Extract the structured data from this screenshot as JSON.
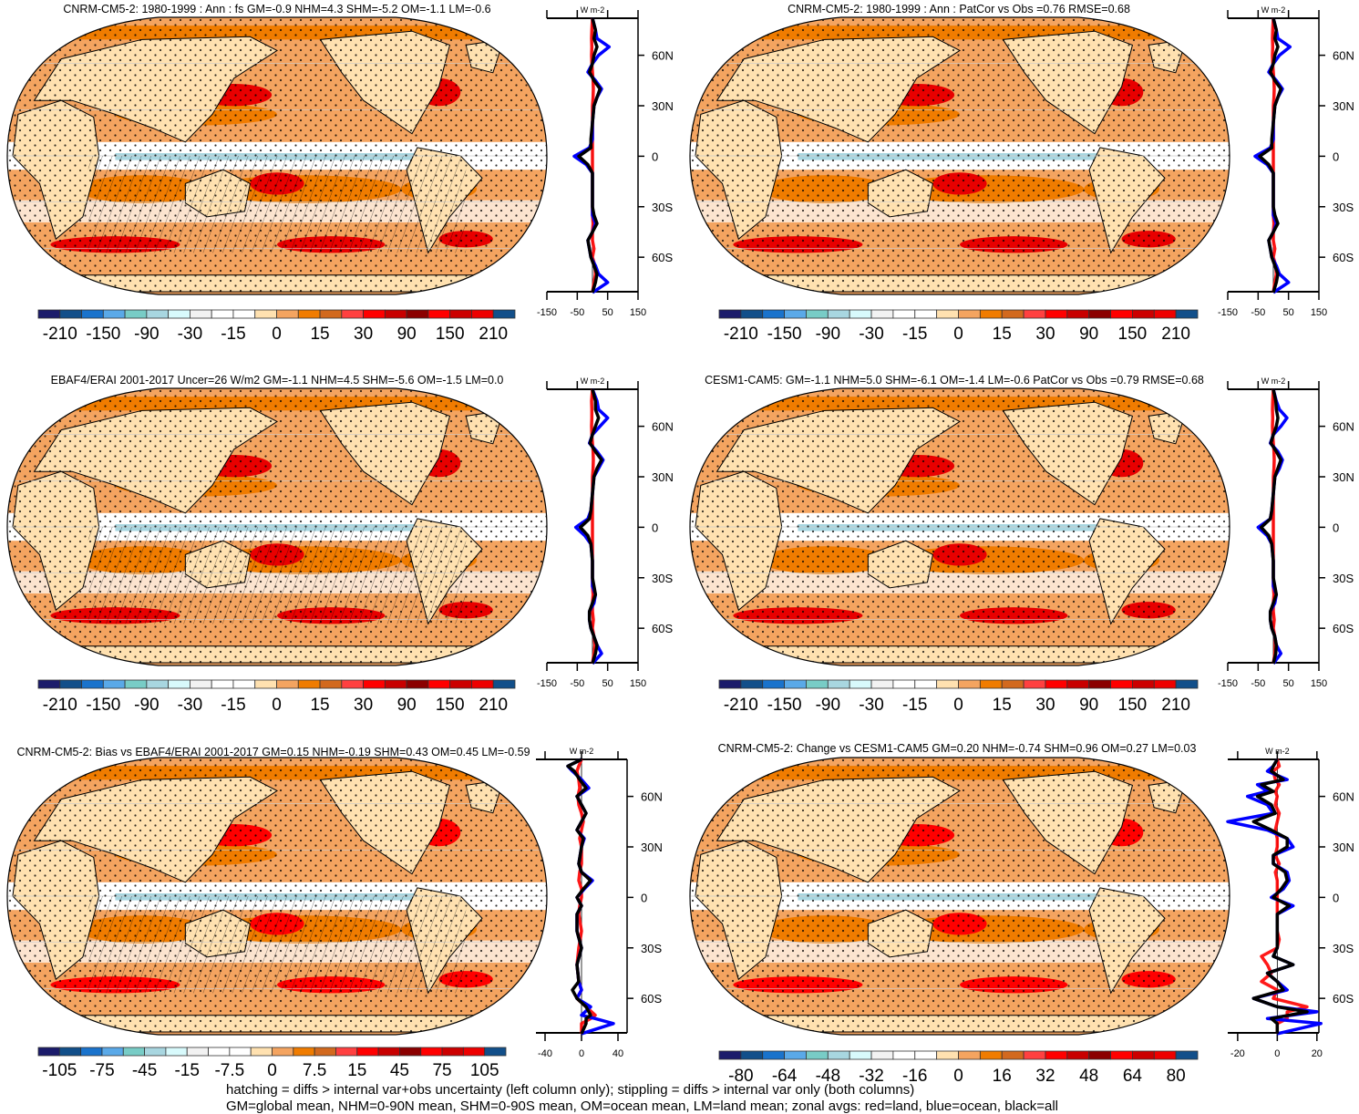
{
  "chart_data": [
    {
      "type": "map",
      "title": "CNRM-CM5-2: 1980-1999 : Ann : fs GM=-0.9 NHM=4.3 SHM=-5.2 OM=-1.1 LM=-0.6",
      "colorbar": {
        "labels": [
          "-210",
          "-150",
          "-90",
          "-30",
          "-15",
          "0",
          "15",
          "30",
          "90",
          "150",
          "210"
        ]
      },
      "zonal": {
        "unit": "W m-2",
        "xticks": [
          "-150",
          "-50",
          "50",
          "150"
        ],
        "xlim": [
          -150,
          150
        ],
        "lat_labels": [
          "60N",
          "30N",
          "0",
          "30S",
          "60S"
        ],
        "lat": [
          82,
          75,
          70,
          65,
          60,
          55,
          50,
          45,
          40,
          35,
          30,
          20,
          10,
          5,
          0,
          -5,
          -10,
          -20,
          -30,
          -35,
          -40,
          -45,
          -50,
          -55,
          -60,
          -65,
          -70,
          -75,
          -81
        ],
        "series": {
          "land": [
            0,
            -2,
            -3,
            -2,
            -3,
            -2,
            0,
            2,
            3,
            2,
            0,
            0,
            0,
            0,
            0,
            0,
            0,
            0,
            0,
            0,
            2,
            0,
            0,
            5,
            0,
            8,
            10,
            5,
            0
          ],
          "ocean": [
            0,
            10,
            15,
            55,
            20,
            0,
            -15,
            10,
            30,
            15,
            5,
            0,
            0,
            -10,
            -60,
            -20,
            0,
            0,
            0,
            0,
            10,
            0,
            -15,
            -10,
            -5,
            10,
            20,
            50,
            0
          ],
          "all": [
            0,
            10,
            5,
            15,
            5,
            0,
            -10,
            5,
            25,
            15,
            5,
            0,
            -5,
            -5,
            -45,
            -15,
            0,
            0,
            0,
            5,
            15,
            0,
            -15,
            -10,
            -5,
            5,
            15,
            10,
            0
          ]
        }
      }
    },
    {
      "type": "map",
      "title": "CNRM-CM5-2: 1980-1999 : Ann : PatCor vs Obs =0.76 RMSE=0.68",
      "colorbar": {
        "labels": [
          "-210",
          "-150",
          "-90",
          "-30",
          "-15",
          "0",
          "15",
          "30",
          "90",
          "150",
          "210"
        ]
      },
      "zonal": {
        "unit": "W m-2",
        "xticks": [
          "-150",
          "-50",
          "50",
          "150"
        ],
        "xlim": [
          -150,
          150
        ],
        "lat_labels": [
          "60N",
          "30N",
          "0",
          "30S",
          "60S"
        ],
        "lat": [
          82,
          75,
          70,
          65,
          60,
          55,
          50,
          45,
          40,
          35,
          30,
          20,
          10,
          5,
          0,
          -5,
          -10,
          -20,
          -30,
          -35,
          -40,
          -45,
          -50,
          -55,
          -60,
          -65,
          -70,
          -75,
          -81
        ],
        "series": {
          "land": [
            0,
            -2,
            -3,
            -2,
            -3,
            -2,
            0,
            2,
            3,
            2,
            0,
            0,
            0,
            0,
            0,
            0,
            0,
            0,
            0,
            0,
            2,
            0,
            0,
            5,
            0,
            8,
            10,
            5,
            0
          ],
          "ocean": [
            0,
            10,
            15,
            55,
            20,
            0,
            -15,
            10,
            30,
            15,
            5,
            0,
            0,
            -10,
            -60,
            -20,
            0,
            0,
            0,
            0,
            10,
            0,
            -15,
            -10,
            -5,
            10,
            20,
            50,
            0
          ],
          "all": [
            0,
            10,
            5,
            15,
            5,
            0,
            -10,
            5,
            25,
            15,
            5,
            0,
            -5,
            -5,
            -45,
            -15,
            0,
            0,
            0,
            5,
            15,
            0,
            -15,
            -10,
            -5,
            5,
            15,
            10,
            0
          ]
        }
      }
    },
    {
      "type": "map",
      "title": "EBAF4/ERAI 2001-2017 Uncer=26 W/m2 GM=-1.1 NHM=4.5 SHM=-5.6 OM=-1.5 LM=0.0",
      "colorbar": {
        "labels": [
          "-210",
          "-150",
          "-90",
          "-30",
          "-15",
          "0",
          "15",
          "30",
          "90",
          "150",
          "210"
        ]
      },
      "zonal": {
        "unit": "W m-2",
        "xticks": [
          "-150",
          "-50",
          "50",
          "150"
        ],
        "xlim": [
          -150,
          150
        ],
        "lat_labels": [
          "60N",
          "30N",
          "0",
          "30S",
          "60S"
        ],
        "lat": [
          82,
          75,
          70,
          65,
          60,
          55,
          50,
          45,
          40,
          35,
          30,
          20,
          10,
          5,
          0,
          -5,
          -10,
          -20,
          -30,
          -35,
          -40,
          -45,
          -50,
          -55,
          -60,
          -65,
          -70,
          -75,
          -81
        ],
        "series": {
          "land": [
            0,
            -3,
            -2,
            -2,
            -3,
            -2,
            0,
            2,
            3,
            2,
            0,
            0,
            0,
            0,
            0,
            0,
            0,
            0,
            0,
            0,
            2,
            0,
            0,
            3,
            0,
            5,
            8,
            5,
            0
          ],
          "ocean": [
            0,
            15,
            20,
            50,
            25,
            0,
            -10,
            15,
            35,
            20,
            5,
            0,
            -5,
            -15,
            -55,
            -25,
            -5,
            0,
            0,
            0,
            10,
            5,
            -10,
            -10,
            -5,
            5,
            15,
            30,
            0
          ],
          "all": [
            0,
            10,
            10,
            20,
            10,
            0,
            -8,
            10,
            30,
            15,
            5,
            0,
            -5,
            -10,
            -40,
            -15,
            -5,
            0,
            0,
            5,
            10,
            0,
            -10,
            -10,
            -5,
            5,
            15,
            10,
            0
          ]
        }
      }
    },
    {
      "type": "map",
      "title": "CESM1-CAM5: GM=-1.1 NHM=5.0 SHM=-6.1 OM=-1.4 LM=-0.6 PatCor vs Obs =0.79 RMSE=0.68",
      "colorbar": {
        "labels": [
          "-210",
          "-150",
          "-90",
          "-30",
          "-15",
          "0",
          "15",
          "30",
          "90",
          "150",
          "210"
        ]
      },
      "zonal": {
        "unit": "W m-2",
        "xticks": [
          "-150",
          "-50",
          "50",
          "150"
        ],
        "xlim": [
          -150,
          150
        ],
        "lat_labels": [
          "60N",
          "30N",
          "0",
          "30S",
          "60S"
        ],
        "lat": [
          82,
          75,
          70,
          65,
          60,
          55,
          50,
          45,
          40,
          35,
          30,
          20,
          10,
          5,
          0,
          -5,
          -10,
          -20,
          -30,
          -35,
          -40,
          -45,
          -50,
          -55,
          -60,
          -65,
          -70,
          -75,
          -81
        ],
        "series": {
          "land": [
            0,
            -2,
            -3,
            -2,
            -3,
            -2,
            0,
            2,
            3,
            2,
            0,
            0,
            0,
            0,
            0,
            0,
            0,
            0,
            0,
            0,
            2,
            0,
            0,
            3,
            0,
            5,
            6,
            5,
            0
          ],
          "ocean": [
            0,
            10,
            20,
            45,
            25,
            0,
            -10,
            15,
            30,
            20,
            5,
            0,
            -5,
            -10,
            -50,
            -20,
            -5,
            0,
            0,
            0,
            10,
            5,
            -10,
            -10,
            -5,
            5,
            10,
            25,
            0
          ],
          "all": [
            0,
            8,
            10,
            15,
            10,
            0,
            -8,
            10,
            25,
            15,
            5,
            0,
            -5,
            -10,
            -40,
            -15,
            -5,
            0,
            0,
            5,
            10,
            0,
            -10,
            -10,
            -5,
            5,
            10,
            8,
            0
          ]
        }
      }
    },
    {
      "type": "map",
      "title": "CNRM-CM5-2: Bias vs EBAF4/ERAI 2001-2017 GM=0.15 NHM=-0.19 SHM=0.43 OM=0.45 LM=-0.59",
      "colorbar": {
        "labels": [
          "-105",
          "-75",
          "-45",
          "-15",
          "-7.5",
          "0",
          "7.5",
          "15",
          "45",
          "75",
          "105"
        ]
      },
      "zonal": {
        "unit": "W m-2",
        "xticks": [
          "-40",
          "0",
          "40"
        ],
        "xlim": [
          -50,
          50
        ],
        "lat_labels": [
          "60N",
          "30N",
          "0",
          "30S",
          "60S"
        ],
        "lat": [
          82,
          78,
          75,
          70,
          65,
          60,
          55,
          50,
          45,
          40,
          35,
          30,
          20,
          15,
          10,
          5,
          0,
          -5,
          -10,
          -20,
          -30,
          -40,
          -50,
          -55,
          -60,
          -65,
          -70,
          -72,
          -75,
          -81
        ],
        "series": {
          "land": [
            0,
            -3,
            -5,
            -3,
            -2,
            -4,
            -3,
            0,
            2,
            0,
            -2,
            0,
            0,
            -2,
            -3,
            0,
            0,
            -2,
            -3,
            0,
            -3,
            -5,
            -3,
            0,
            -5,
            5,
            15,
            10,
            0,
            0
          ],
          "ocean": [
            0,
            -15,
            -10,
            0,
            8,
            -5,
            0,
            5,
            0,
            -5,
            3,
            0,
            -3,
            0,
            12,
            3,
            -5,
            0,
            -5,
            -5,
            0,
            -5,
            -3,
            0,
            -5,
            10,
            0,
            15,
            35,
            0
          ],
          "all": [
            0,
            -15,
            -8,
            -2,
            5,
            -5,
            0,
            5,
            0,
            -5,
            2,
            0,
            -3,
            0,
            10,
            2,
            -5,
            0,
            -5,
            -5,
            0,
            -5,
            -3,
            -10,
            -5,
            5,
            10,
            5,
            5,
            0
          ]
        }
      }
    },
    {
      "type": "map",
      "title": "CNRM-CM5-2: Change vs CESM1-CAM5 GM=0.20 NHM=-0.74 SHM=0.96 OM=0.27 LM=0.03",
      "colorbar": {
        "labels": [
          "-80",
          "-64",
          "-48",
          "-32",
          "-16",
          "0",
          "16",
          "32",
          "48",
          "64",
          "80"
        ]
      },
      "zonal": {
        "unit": "W m-2",
        "xticks": [
          "-20",
          "0",
          "20"
        ],
        "xlim": [
          -25,
          21
        ],
        "lat_labels": [
          "60N",
          "30N",
          "0",
          "30S",
          "60S"
        ],
        "lat": [
          82,
          78,
          75,
          70,
          67,
          63,
          60,
          55,
          50,
          45,
          40,
          35,
          30,
          25,
          20,
          15,
          10,
          5,
          0,
          -5,
          -10,
          -15,
          -20,
          -25,
          -30,
          -35,
          -40,
          -45,
          -50,
          -55,
          -60,
          -65,
          -68,
          -72,
          -75,
          -81
        ],
        "series": {
          "land": [
            0,
            1,
            -2,
            -1,
            1,
            -1,
            0,
            -1,
            1,
            0,
            -1,
            0,
            0,
            -1,
            1,
            -1,
            0,
            0,
            0,
            0,
            0,
            0,
            0,
            1,
            0,
            -8,
            -5,
            -3,
            -8,
            0,
            -2,
            15,
            5,
            5,
            0,
            0
          ],
          "ocean": [
            0,
            -2,
            -5,
            5,
            -10,
            -5,
            -15,
            -5,
            -2,
            -25,
            -5,
            5,
            8,
            -2,
            -2,
            5,
            6,
            3,
            -3,
            8,
            0,
            0,
            0,
            0,
            0,
            -2,
            8,
            -5,
            0,
            5,
            -12,
            0,
            20,
            -5,
            22,
            0
          ],
          "all": [
            0,
            -2,
            -3,
            3,
            -8,
            -2,
            -10,
            -3,
            -1,
            -12,
            -3,
            5,
            5,
            -2,
            -2,
            4,
            5,
            2,
            -2,
            6,
            0,
            0,
            0,
            0,
            0,
            -2,
            8,
            -5,
            0,
            3,
            -12,
            0,
            15,
            -3,
            0,
            0
          ]
        }
      }
    }
  ],
  "colorbar_colors": [
    "#1b1b6b",
    "#124f8a",
    "#1a73cc",
    "#5aa9e8",
    "#78ccc6",
    "#a8d6e0",
    "#d8fafc",
    "#f2f2f2",
    "#ffffff",
    "#ffffff",
    "#ffe1b0",
    "#f4a460",
    "#f07c00",
    "#d2691e",
    "#ff4040",
    "#ff0000",
    "#c80000",
    "#8b0000",
    "#ff0000",
    "#cc0000",
    "#ee0000",
    "#124f8a"
  ],
  "line_colors": {
    "land": "#ff0000",
    "ocean": "#0000ff",
    "all": "#000000"
  },
  "footer": {
    "line1": "hatching = diffs > internal var+obs uncertainty (left column only); stippling = diffs > internal var only (both columns)",
    "line2": "GM=global mean, NHM=0-90N mean, SHM=0-90S mean, OM=ocean mean, LM=land mean; zonal avgs: red=land, blue=ocean, black=all"
  }
}
